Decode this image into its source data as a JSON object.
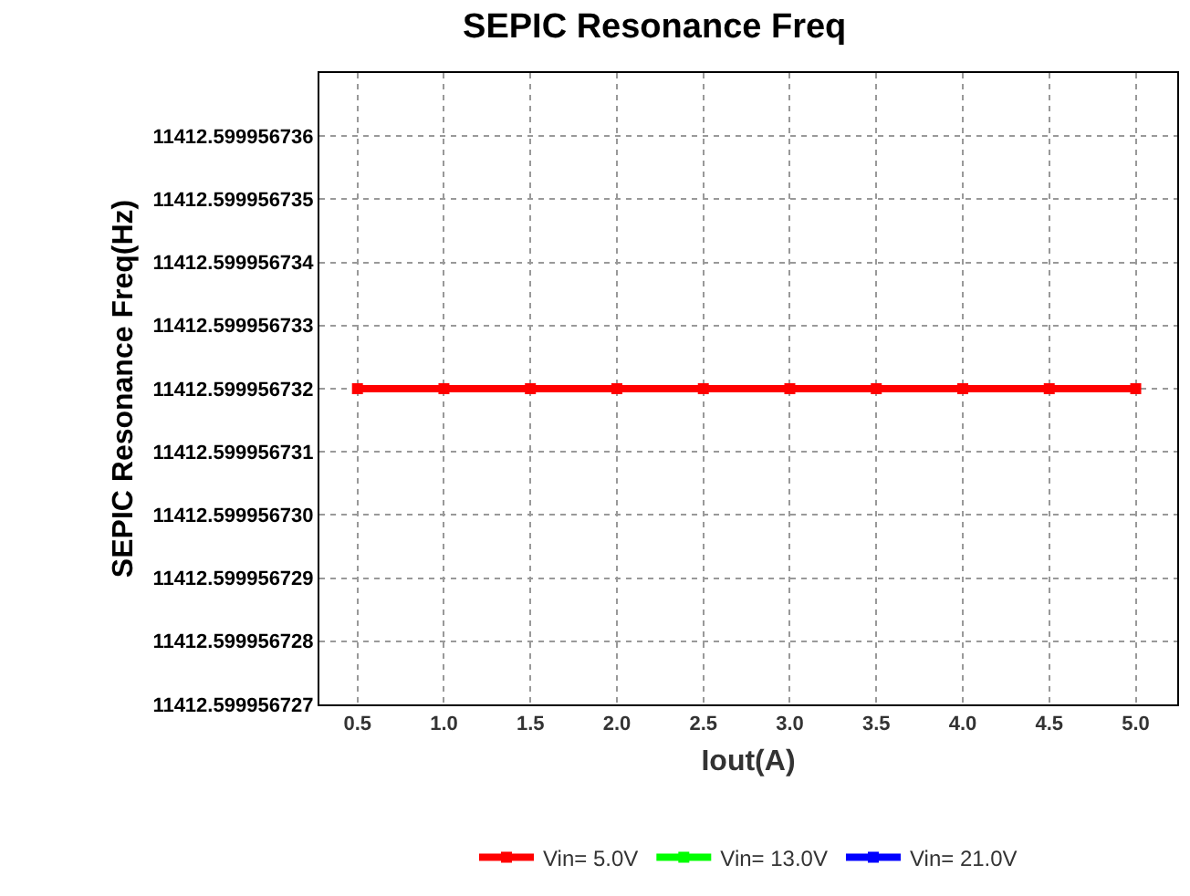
{
  "chart_data": {
    "type": "line",
    "title": "SEPIC Resonance Freq",
    "xlabel": "Iout(A)",
    "ylabel": "SEPIC Resonance Freq(Hz)",
    "x": [
      0.5,
      1.0,
      1.5,
      2.0,
      2.5,
      3.0,
      3.5,
      4.0,
      4.5,
      5.0
    ],
    "series": [
      {
        "name": "Vin= 5.0V",
        "color": "#ff0000",
        "values": [
          11412.599956732,
          11412.599956732,
          11412.599956732,
          11412.599956732,
          11412.599956732,
          11412.599956732,
          11412.599956732,
          11412.599956732,
          11412.599956732,
          11412.599956732
        ]
      },
      {
        "name": "Vin= 13.0V",
        "color": "#00ff00",
        "values": [
          null,
          null,
          null,
          null,
          null,
          null,
          null,
          null,
          null,
          null
        ]
      },
      {
        "name": "Vin= 21.0V",
        "color": "#0000ff",
        "values": [
          null,
          null,
          null,
          null,
          null,
          null,
          null,
          null,
          null,
          null
        ]
      }
    ],
    "xlim": [
      0.28,
      5.24
    ],
    "xticks": [
      {
        "value": 0.5,
        "label": "0.5"
      },
      {
        "value": 1.0,
        "label": "1.0"
      },
      {
        "value": 1.5,
        "label": "1.5"
      },
      {
        "value": 2.0,
        "label": "2.0"
      },
      {
        "value": 2.5,
        "label": "2.5"
      },
      {
        "value": 3.0,
        "label": "3.0"
      },
      {
        "value": 3.5,
        "label": "3.5"
      },
      {
        "value": 4.0,
        "label": "4.0"
      },
      {
        "value": 4.5,
        "label": "4.5"
      },
      {
        "value": 5.0,
        "label": "5.0"
      }
    ],
    "ylim": [
      11412.599956727,
      11412.599956737
    ],
    "yticks": [
      11412.599956727,
      11412.599956728,
      11412.599956729,
      {
        "value": 11412.59995673,
        "label": "11412.599956730"
      },
      11412.599956731,
      11412.599956732,
      11412.599956733,
      11412.599956734,
      11412.599956735,
      11412.599956736
    ],
    "grid": true,
    "legend": "bottom",
    "marker": "square",
    "line_style": "solid"
  }
}
